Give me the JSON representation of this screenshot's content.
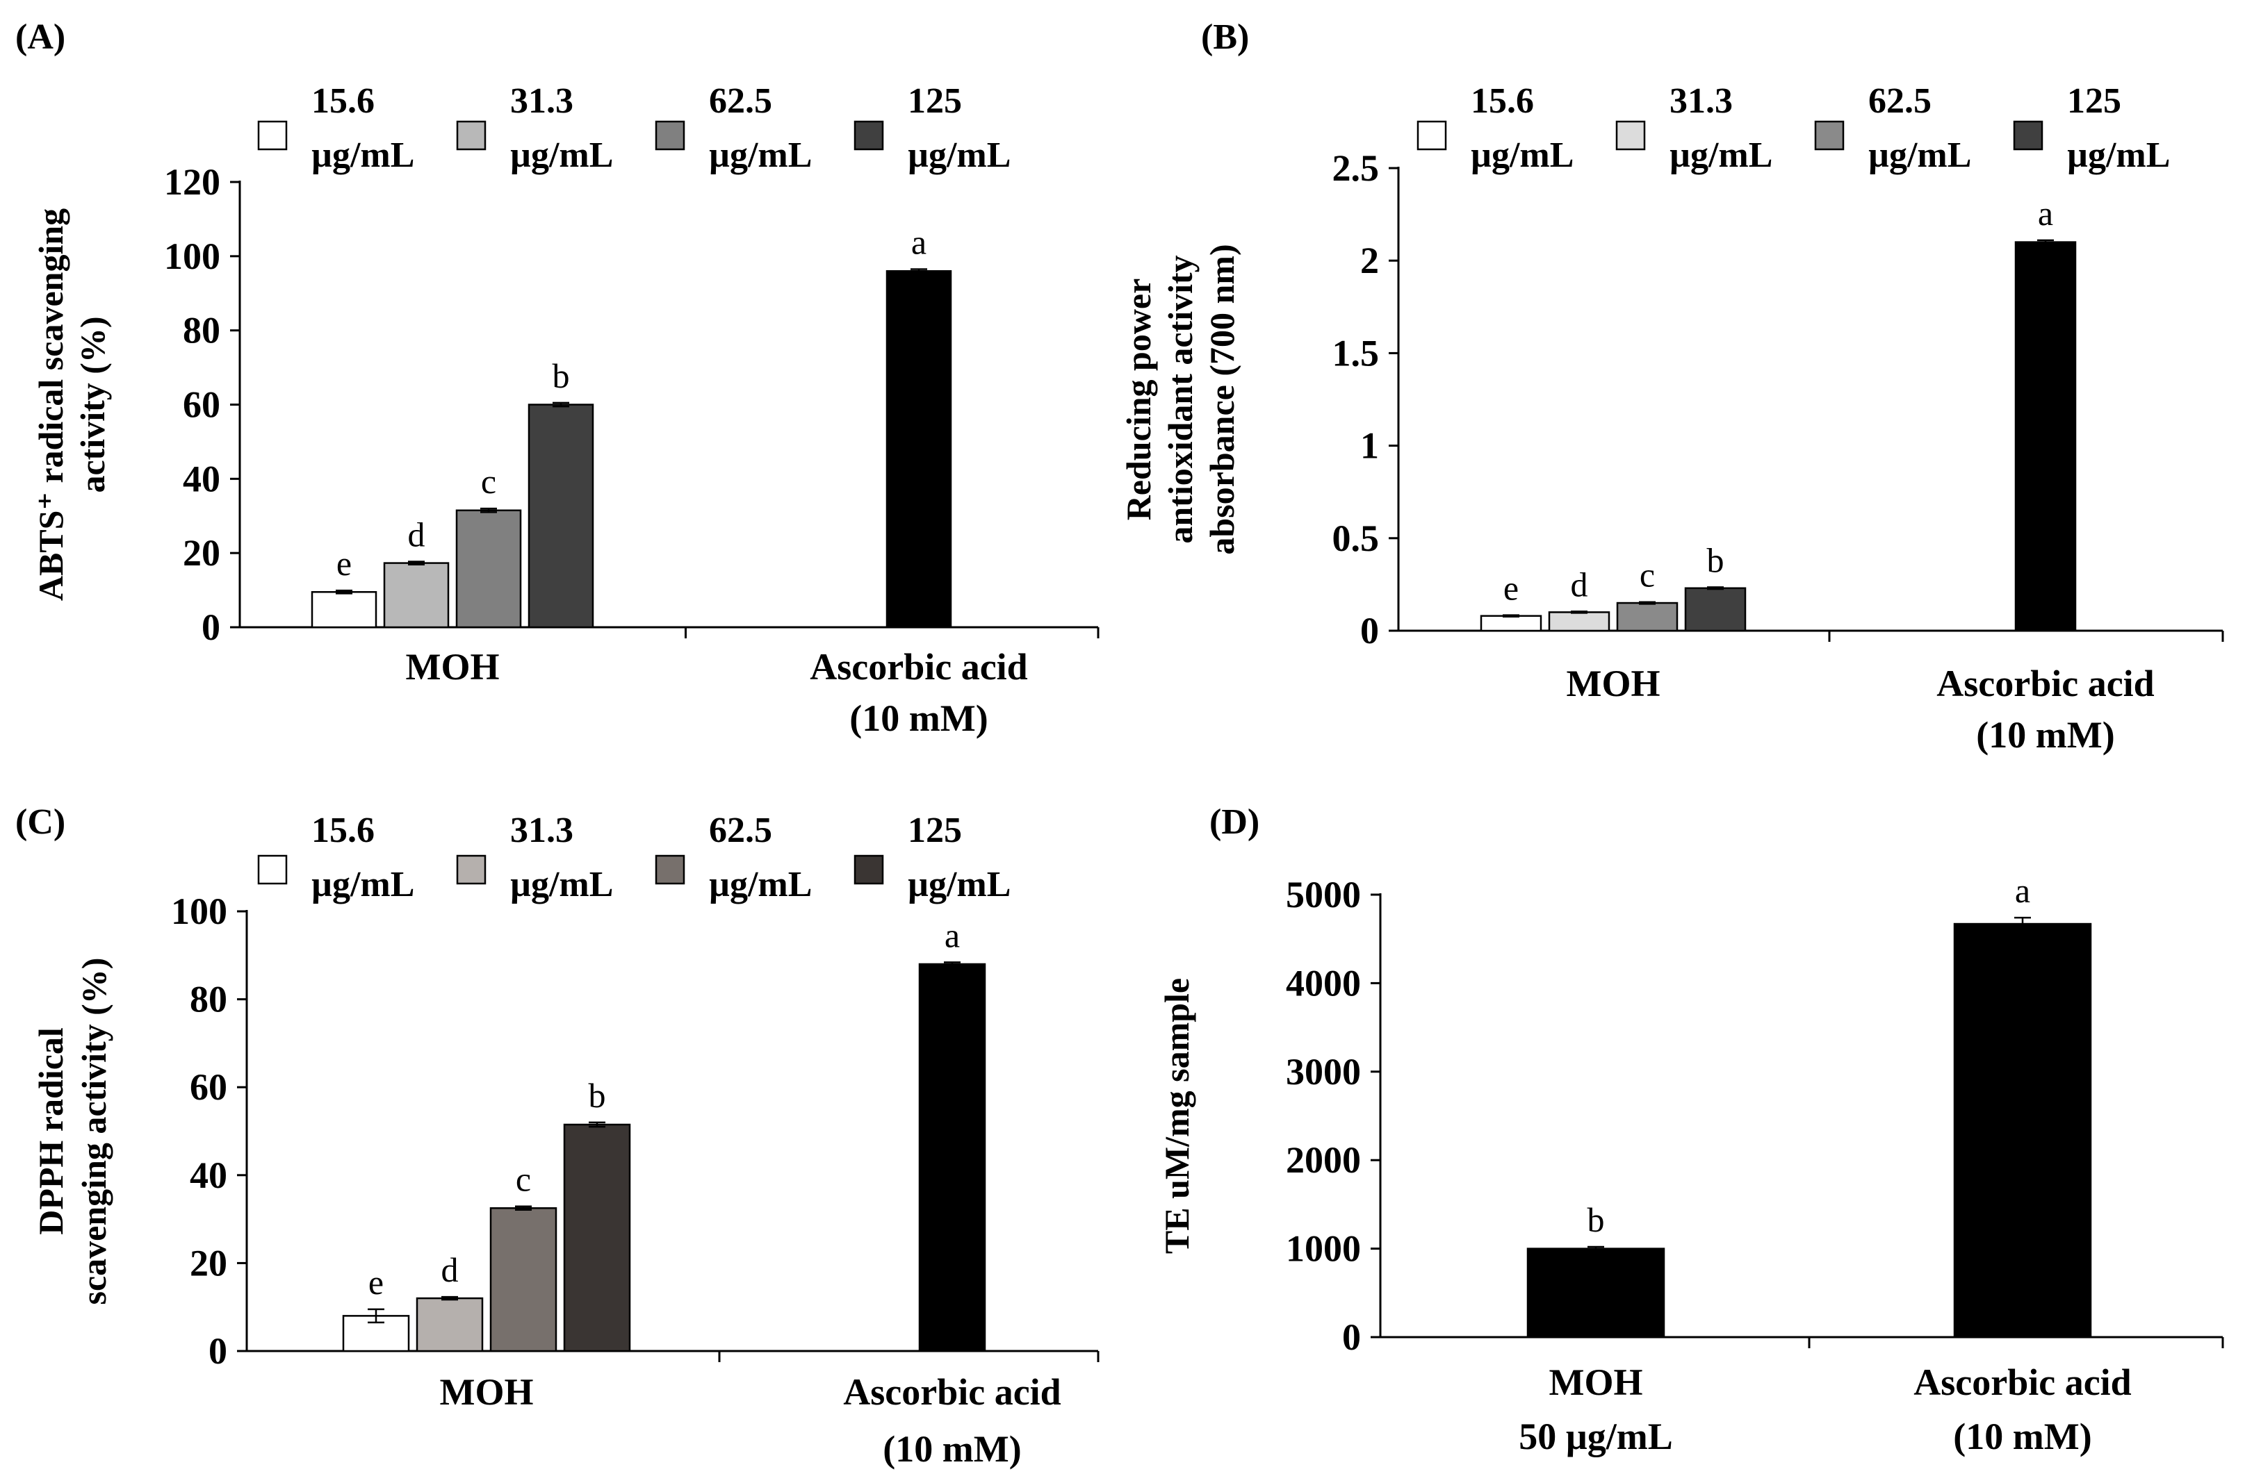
{
  "chart_data": [
    {
      "type": "bar",
      "panel_label": "(A)",
      "title": "",
      "xlabel": "",
      "ylabel_lines": [
        "ABTS⁺ radical scavenging",
        "activity (%)"
      ],
      "ylim": [
        0,
        120
      ],
      "yticks": [
        "0",
        "20",
        "40",
        "60",
        "80",
        "100",
        "120"
      ],
      "grid": false,
      "legend_position": "top",
      "legend": [
        {
          "line1": "15.6",
          "line2": "µg/mL",
          "color": "#ffffff"
        },
        {
          "line1": "31.3",
          "line2": "µg/mL",
          "color": "#b8b8b8"
        },
        {
          "line1": "62.5",
          "line2": "µg/mL",
          "color": "#808080"
        },
        {
          "line1": "125",
          "line2": "µg/mL",
          "color": "#404040"
        }
      ],
      "groups": [
        {
          "label_lines": [
            "MOH"
          ],
          "bars": [
            {
              "series": "15.6 µg/mL",
              "value": 9.5,
              "error": 0.4,
              "letter": "e",
              "color": "#ffffff"
            },
            {
              "series": "31.3 µg/mL",
              "value": 17.3,
              "error": 0.4,
              "letter": "d",
              "color": "#b8b8b8"
            },
            {
              "series": "62.5 µg/mL",
              "value": 31.5,
              "error": 0.5,
              "letter": "c",
              "color": "#808080"
            },
            {
              "series": "125 µg/mL",
              "value": 60.0,
              "error": 0.5,
              "letter": "b",
              "color": "#404040"
            }
          ]
        },
        {
          "label_lines": [
            "Ascorbic acid",
            "(10 mM)"
          ],
          "bars": [
            {
              "series": "Ascorbic acid",
              "value": 96.0,
              "error": 0.5,
              "letter": "a",
              "color": "#000000"
            }
          ]
        }
      ]
    },
    {
      "type": "bar",
      "panel_label": "(B)",
      "title": "",
      "xlabel": "",
      "ylabel_lines": [
        "Reducing power",
        "antioxidant activity",
        "absorbance (700 nm)"
      ],
      "ylim": [
        0,
        2.5
      ],
      "yticks": [
        "0",
        "0.5",
        "1",
        "1.5",
        "2",
        "2.5"
      ],
      "grid": false,
      "legend_position": "top",
      "legend": [
        {
          "line1": "15.6",
          "line2": "µg/mL",
          "color": "#ffffff"
        },
        {
          "line1": "31.3",
          "line2": "µg/mL",
          "color": "#dcdcdc"
        },
        {
          "line1": "62.5",
          "line2": "µg/mL",
          "color": "#8a8a8a"
        },
        {
          "line1": "125",
          "line2": "µg/mL",
          "color": "#404040"
        }
      ],
      "groups": [
        {
          "label_lines": [
            "MOH"
          ],
          "bars": [
            {
              "series": "15.6 µg/mL",
              "value": 0.08,
              "error": 0.004,
              "letter": "e",
              "color": "#ffffff"
            },
            {
              "series": "31.3 µg/mL",
              "value": 0.1,
              "error": 0.004,
              "letter": "d",
              "color": "#dcdcdc"
            },
            {
              "series": "62.5 µg/mL",
              "value": 0.15,
              "error": 0.005,
              "letter": "c",
              "color": "#8a8a8a"
            },
            {
              "series": "125 µg/mL",
              "value": 0.23,
              "error": 0.005,
              "letter": "b",
              "color": "#404040"
            }
          ]
        },
        {
          "label_lines": [
            "Ascorbic acid",
            "(10 mM)"
          ],
          "bars": [
            {
              "series": "Ascorbic acid",
              "value": 2.1,
              "error": 0.01,
              "letter": "a",
              "color": "#000000"
            }
          ]
        }
      ]
    },
    {
      "type": "bar",
      "panel_label": "(C)",
      "title": "",
      "xlabel": "",
      "ylabel_lines": [
        "DPPH radical",
        "scavenging activity (%)"
      ],
      "ylim": [
        0,
        100
      ],
      "yticks": [
        "0",
        "20",
        "40",
        "60",
        "80",
        "100"
      ],
      "grid": false,
      "legend_position": "top",
      "legend": [
        {
          "line1": "15.6",
          "line2": "µg/mL",
          "color": "#ffffff"
        },
        {
          "line1": "31.3",
          "line2": "µg/mL",
          "color": "#b5b0ad"
        },
        {
          "line1": "62.5",
          "line2": "µg/mL",
          "color": "#77706c"
        },
        {
          "line1": "125",
          "line2": "µg/mL",
          "color": "#3a3533"
        }
      ],
      "groups": [
        {
          "label_lines": [
            "MOH"
          ],
          "bars": [
            {
              "series": "15.6 µg/mL",
              "value": 8.0,
              "error": 1.5,
              "letter": "e",
              "color": "#ffffff"
            },
            {
              "series": "31.3 µg/mL",
              "value": 12.0,
              "error": 0.3,
              "letter": "d",
              "color": "#b5b0ad"
            },
            {
              "series": "62.5 µg/mL",
              "value": 32.5,
              "error": 0.4,
              "letter": "c",
              "color": "#77706c"
            },
            {
              "series": "125 µg/mL",
              "value": 51.5,
              "error": 0.5,
              "letter": "b",
              "color": "#3a3533"
            }
          ]
        },
        {
          "label_lines": [
            "Ascorbic acid",
            "(10 mM)"
          ],
          "bars": [
            {
              "series": "Ascorbic acid",
              "value": 88.0,
              "error": 0.4,
              "letter": "a",
              "color": "#000000"
            }
          ]
        }
      ]
    },
    {
      "type": "bar",
      "panel_label": "(D)",
      "title": "",
      "xlabel": "",
      "ylabel_lines": [
        "TE uM/mg sample"
      ],
      "ylim": [
        0,
        5000
      ],
      "yticks": [
        "0",
        "1000",
        "2000",
        "3000",
        "4000",
        "5000"
      ],
      "grid": false,
      "legend_position": "none",
      "legend": [],
      "groups": [
        {
          "label_lines": [
            "MOH",
            "50 µg/mL"
          ],
          "bars": [
            {
              "series": "MOH 50 µg/mL",
              "value": 1000,
              "error": 20,
              "letter": "b",
              "color": "#000000"
            }
          ]
        },
        {
          "label_lines": [
            "Ascorbic acid",
            "(10 mM)"
          ],
          "bars": [
            {
              "series": "Ascorbic acid",
              "value": 4670,
              "error": 70,
              "letter": "a",
              "color": "#000000"
            }
          ]
        }
      ]
    }
  ]
}
